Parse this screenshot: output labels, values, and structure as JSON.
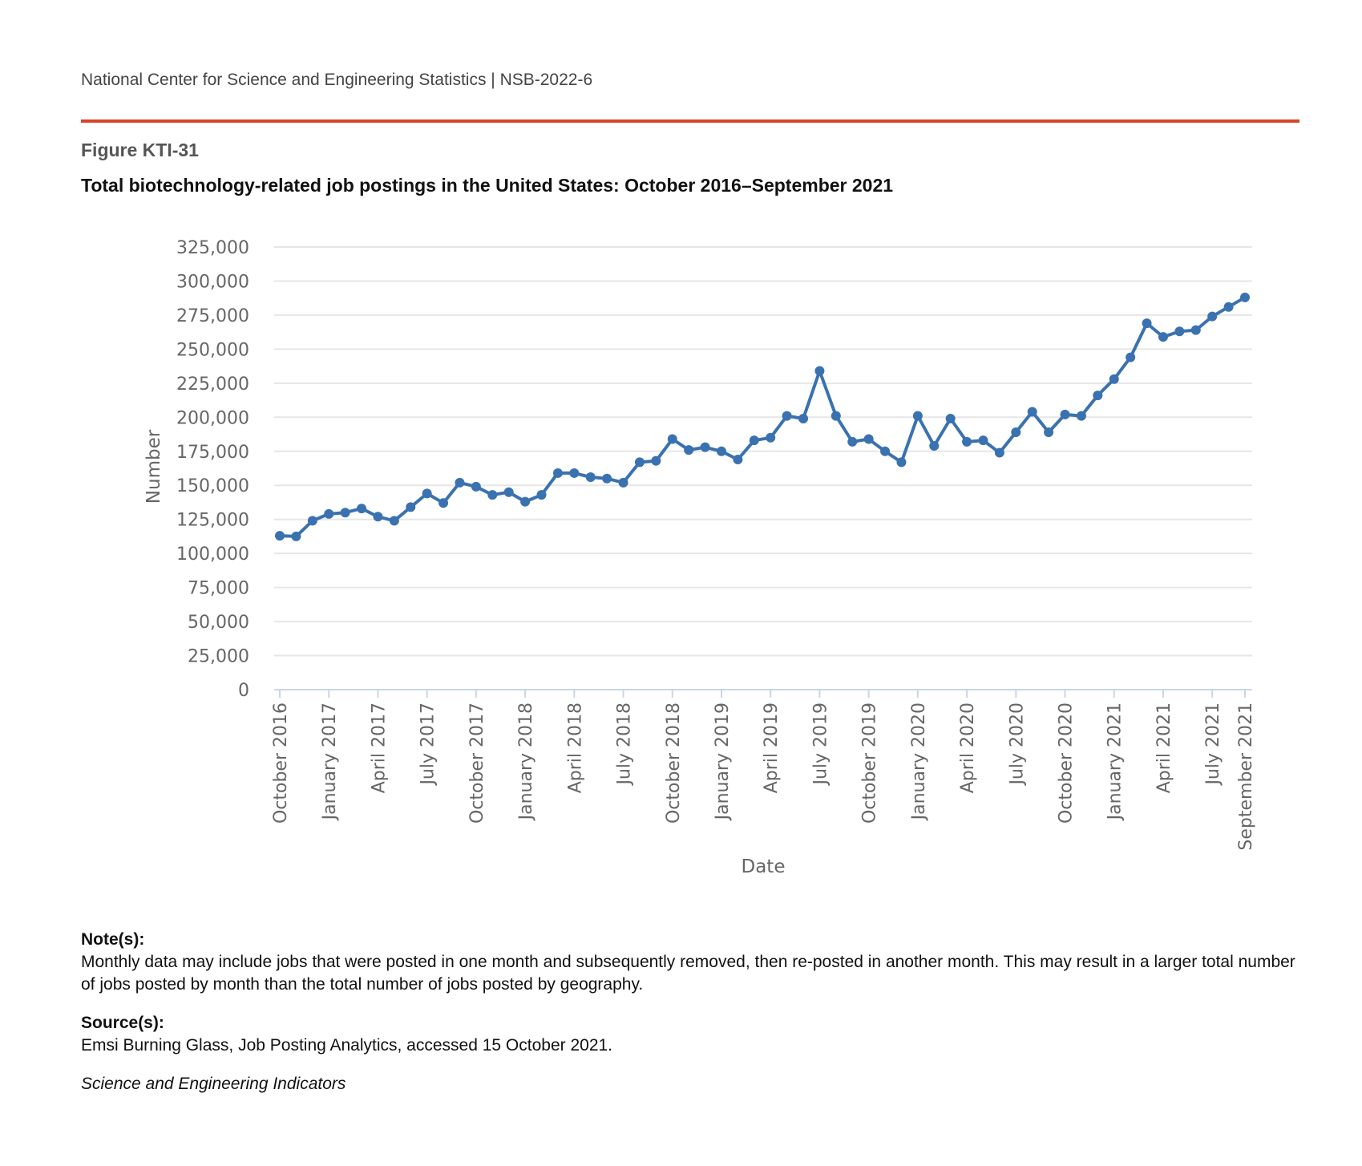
{
  "header": {
    "org_line": "National Center for Science and Engineering Statistics  |  NSB-2022-6"
  },
  "figure": {
    "label": "Figure KTI-31",
    "title": "Total biotechnology-related job postings in the United States: October 2016–September 2021"
  },
  "notes": {
    "note_heading": "Note(s):",
    "note_text": "Monthly data may include jobs that were posted in one month and subsequently removed, then re-posted in another month. This may result in a larger total number of jobs posted by month than the total number of jobs posted by geography.",
    "source_heading": "Source(s):",
    "source_text": "Emsi Burning Glass, Job Posting Analytics, accessed 15 October 2021.",
    "footer": "Science and Engineering Indicators"
  },
  "chart_data": {
    "type": "line",
    "title": "",
    "xlabel": "Date",
    "ylabel": "Number",
    "ylim": [
      0,
      325000
    ],
    "y_ticks": [
      0,
      25000,
      50000,
      75000,
      100000,
      125000,
      150000,
      175000,
      200000,
      225000,
      250000,
      275000,
      300000,
      325000
    ],
    "y_tick_labels": [
      "0",
      "25,000",
      "50,000",
      "75,000",
      "100,000",
      "125,000",
      "150,000",
      "175,000",
      "200,000",
      "225,000",
      "250,000",
      "275,000",
      "300,000",
      "325,000"
    ],
    "x_tick_labels": [
      "October 2016",
      "January 2017",
      "April 2017",
      "July 2017",
      "October 2017",
      "January 2018",
      "April 2018",
      "July 2018",
      "October 2018",
      "January 2019",
      "April 2019",
      "July 2019",
      "October 2019",
      "January 2020",
      "April 2020",
      "July 2020",
      "October 2020",
      "January 2021",
      "April 2021",
      "July 2021",
      "September 2021"
    ],
    "grid": true,
    "color": "#3a72b0",
    "x": [
      "2016-10",
      "2016-11",
      "2016-12",
      "2017-01",
      "2017-02",
      "2017-03",
      "2017-04",
      "2017-05",
      "2017-06",
      "2017-07",
      "2017-08",
      "2017-09",
      "2017-10",
      "2017-11",
      "2017-12",
      "2018-01",
      "2018-02",
      "2018-03",
      "2018-04",
      "2018-05",
      "2018-06",
      "2018-07",
      "2018-08",
      "2018-09",
      "2018-10",
      "2018-11",
      "2018-12",
      "2019-01",
      "2019-02",
      "2019-03",
      "2019-04",
      "2019-05",
      "2019-06",
      "2019-07",
      "2019-08",
      "2019-09",
      "2019-10",
      "2019-11",
      "2019-12",
      "2020-01",
      "2020-02",
      "2020-03",
      "2020-04",
      "2020-05",
      "2020-06",
      "2020-07",
      "2020-08",
      "2020-09",
      "2020-10",
      "2020-11",
      "2020-12",
      "2021-01",
      "2021-02",
      "2021-03",
      "2021-04",
      "2021-05",
      "2021-06",
      "2021-07",
      "2021-08",
      "2021-09"
    ],
    "values": [
      113000,
      112500,
      124000,
      129000,
      130000,
      133000,
      127000,
      124000,
      134000,
      144000,
      137000,
      152000,
      149000,
      143000,
      145000,
      138000,
      143000,
      159000,
      159000,
      156000,
      155000,
      152000,
      167000,
      168000,
      184000,
      176000,
      178000,
      175000,
      169000,
      183000,
      185000,
      201000,
      199000,
      234000,
      201000,
      182000,
      184000,
      175000,
      167000,
      201000,
      179000,
      199000,
      182000,
      183000,
      174000,
      189000,
      204000,
      189000,
      202000,
      201000,
      216000,
      228000,
      244000,
      269000,
      259000,
      263000,
      264000,
      274000,
      281000,
      288000
    ]
  }
}
